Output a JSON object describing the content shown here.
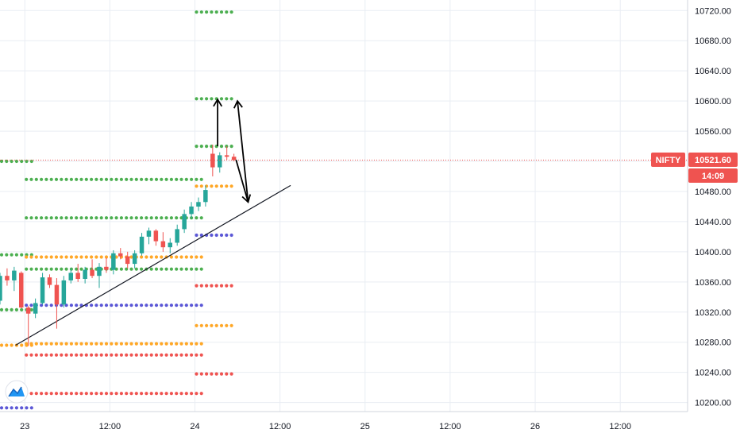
{
  "chart_data": {
    "type": "candlestick",
    "symbol": "NIFTY",
    "last_price": "10521.60",
    "countdown": "14:09",
    "y_ticks": [
      "10720.00",
      "10680.00",
      "10640.00",
      "10600.00",
      "10560.00",
      "10520.00",
      "10480.00",
      "10440.00",
      "10400.00",
      "10360.00",
      "10320.00",
      "10280.00",
      "10240.00",
      "10200.00"
    ],
    "y_tick_values": [
      10720,
      10680,
      10640,
      10600,
      10560,
      10520,
      10480,
      10440,
      10400,
      10360,
      10320,
      10280,
      10240,
      10200
    ],
    "ylim": [
      10188,
      10734
    ],
    "x_ticks": [
      {
        "label": "23",
        "pos": 0
      },
      {
        "label": "12:00",
        "pos": 12
      },
      {
        "label": "24",
        "pos": 24
      },
      {
        "label": "12:00",
        "pos": 36
      },
      {
        "label": "25",
        "pos": 48
      },
      {
        "label": "12:00",
        "pos": 60
      },
      {
        "label": "26",
        "pos": 72
      },
      {
        "label": "12:00",
        "pos": 84
      }
    ],
    "xlim": [
      -3.5,
      93.5
    ],
    "candles": [
      {
        "t": -3.5,
        "o": 10335,
        "h": 10372,
        "l": 10330,
        "c": 10368
      },
      {
        "t": -2.5,
        "o": 10368,
        "h": 10378,
        "l": 10355,
        "c": 10362
      },
      {
        "t": -1.5,
        "o": 10362,
        "h": 10380,
        "l": 10348,
        "c": 10375
      },
      {
        "t": -0.5,
        "o": 10372,
        "h": 10374,
        "l": 10325,
        "c": 10326
      },
      {
        "t": 0.5,
        "o": 10326,
        "h": 10328,
        "l": 10275,
        "c": 10318
      },
      {
        "t": 1.5,
        "o": 10318,
        "h": 10338,
        "l": 10312,
        "c": 10332
      },
      {
        "t": 2.5,
        "o": 10332,
        "h": 10372,
        "l": 10330,
        "c": 10366
      },
      {
        "t": 3.5,
        "o": 10366,
        "h": 10370,
        "l": 10352,
        "c": 10356
      },
      {
        "t": 4.5,
        "o": 10356,
        "h": 10365,
        "l": 10298,
        "c": 10330
      },
      {
        "t": 5.5,
        "o": 10330,
        "h": 10368,
        "l": 10326,
        "c": 10362
      },
      {
        "t": 6.5,
        "o": 10362,
        "h": 10378,
        "l": 10358,
        "c": 10372
      },
      {
        "t": 7.5,
        "o": 10372,
        "h": 10384,
        "l": 10360,
        "c": 10364
      },
      {
        "t": 8.5,
        "o": 10364,
        "h": 10380,
        "l": 10358,
        "c": 10376
      },
      {
        "t": 9.5,
        "o": 10376,
        "h": 10390,
        "l": 10365,
        "c": 10368
      },
      {
        "t": 10.5,
        "o": 10368,
        "h": 10385,
        "l": 10352,
        "c": 10380
      },
      {
        "t": 11.5,
        "o": 10380,
        "h": 10392,
        "l": 10372,
        "c": 10376
      },
      {
        "t": 12.5,
        "o": 10376,
        "h": 10402,
        "l": 10370,
        "c": 10398
      },
      {
        "t": 13.5,
        "o": 10398,
        "h": 10405,
        "l": 10390,
        "c": 10394
      },
      {
        "t": 14.5,
        "o": 10394,
        "h": 10400,
        "l": 10378,
        "c": 10384
      },
      {
        "t": 15.5,
        "o": 10384,
        "h": 10402,
        "l": 10378,
        "c": 10398
      },
      {
        "t": 16.5,
        "o": 10398,
        "h": 10425,
        "l": 10395,
        "c": 10420
      },
      {
        "t": 17.5,
        "o": 10420,
        "h": 10432,
        "l": 10410,
        "c": 10428
      },
      {
        "t": 18.5,
        "o": 10428,
        "h": 10430,
        "l": 10408,
        "c": 10414
      },
      {
        "t": 19.5,
        "o": 10414,
        "h": 10426,
        "l": 10400,
        "c": 10406
      },
      {
        "t": 20.5,
        "o": 10406,
        "h": 10418,
        "l": 10398,
        "c": 10412
      },
      {
        "t": 21.5,
        "o": 10412,
        "h": 10436,
        "l": 10408,
        "c": 10430
      },
      {
        "t": 22.5,
        "o": 10430,
        "h": 10456,
        "l": 10425,
        "c": 10450
      },
      {
        "t": 23.5,
        "o": 10450,
        "h": 10466,
        "l": 10444,
        "c": 10460
      },
      {
        "t": 24.5,
        "o": 10460,
        "h": 10472,
        "l": 10454,
        "c": 10466
      },
      {
        "t": 25.5,
        "o": 10466,
        "h": 10488,
        "l": 10460,
        "c": 10482
      },
      {
        "t": 26.5,
        "o": 10530,
        "h": 10542,
        "l": 10500,
        "c": 10512
      },
      {
        "t": 27.5,
        "o": 10512,
        "h": 10532,
        "l": 10505,
        "c": 10528
      },
      {
        "t": 28.5,
        "o": 10528,
        "h": 10540,
        "l": 10522,
        "c": 10526
      },
      {
        "t": 29.5,
        "o": 10526,
        "h": 10530,
        "l": 10520,
        "c": 10521.6
      }
    ],
    "pivot_levels": [
      {
        "color": "#4caf50",
        "y": 10520,
        "t0": -3.5,
        "t1": 1.0
      },
      {
        "color": "#4caf50",
        "y": 10396,
        "t0": -3.5,
        "t1": 1.0
      },
      {
        "color": "#4caf50",
        "y": 10323,
        "t0": -3.5,
        "t1": 1.0
      },
      {
        "color": "#ffa726",
        "y": 10276,
        "t0": -3.5,
        "t1": 1.0
      },
      {
        "color": "#5b57d6",
        "y": 10193,
        "t0": -3.5,
        "t1": 1.0
      },
      {
        "color": "#4caf50",
        "y": 10496,
        "t0": 0.0,
        "t1": 25.5
      },
      {
        "color": "#4caf50",
        "y": 10445,
        "t0": 0.0,
        "t1": 25.5
      },
      {
        "color": "#ffa726",
        "y": 10393,
        "t0": 0.0,
        "t1": 25.5
      },
      {
        "color": "#4caf50",
        "y": 10377,
        "t0": 0.0,
        "t1": 25.5
      },
      {
        "color": "#5b57d6",
        "y": 10329,
        "t0": 0.0,
        "t1": 25.5
      },
      {
        "color": "#ffa726",
        "y": 10278,
        "t0": 0.0,
        "t1": 25.5
      },
      {
        "color": "#ef5350",
        "y": 10263,
        "t0": 0.0,
        "t1": 25.5
      },
      {
        "color": "#ef5350",
        "y": 10212,
        "t0": 0.0,
        "t1": 25.5
      },
      {
        "color": "#4caf50",
        "y": 10718,
        "t0": 24.0,
        "t1": 29.5
      },
      {
        "color": "#4caf50",
        "y": 10603,
        "t0": 24.0,
        "t1": 29.5
      },
      {
        "color": "#4caf50",
        "y": 10540,
        "t0": 24.0,
        "t1": 29.5
      },
      {
        "color": "#ffa726",
        "y": 10487,
        "t0": 24.0,
        "t1": 29.5
      },
      {
        "color": "#5b57d6",
        "y": 10422,
        "t0": 24.0,
        "t1": 29.5
      },
      {
        "color": "#ef5350",
        "y": 10355,
        "t0": 24.0,
        "t1": 29.5
      },
      {
        "color": "#ffa726",
        "y": 10302,
        "t0": 24.0,
        "t1": 29.5
      },
      {
        "color": "#ef5350",
        "y": 10238,
        "t0": 24.0,
        "t1": 29.5
      }
    ],
    "trendline": {
      "t0": -1.3,
      "y0": 10276,
      "t1": 37.5,
      "y1": 10488
    },
    "annotation_arrows": [
      {
        "t0": 27.2,
        "y0": 10540,
        "t1": 27.2,
        "y1": 10602,
        "head": "end"
      },
      {
        "t0": 29.8,
        "y0": 10522,
        "t1": 31.5,
        "y1": 10466,
        "head": "end"
      },
      {
        "t0": 31.5,
        "y0": 10466,
        "t1": 30.0,
        "y1": 10600,
        "head": "end"
      }
    ],
    "colors": {
      "up": "#26a69a",
      "down": "#ef5350",
      "grid": "#e9edf3",
      "price_line": "#ef5350",
      "tag_bg": "#ef5350",
      "axis_line": "#d1d4dc"
    },
    "grid": true
  },
  "branding": {
    "logo_icon": "tradingview-logo-icon"
  }
}
